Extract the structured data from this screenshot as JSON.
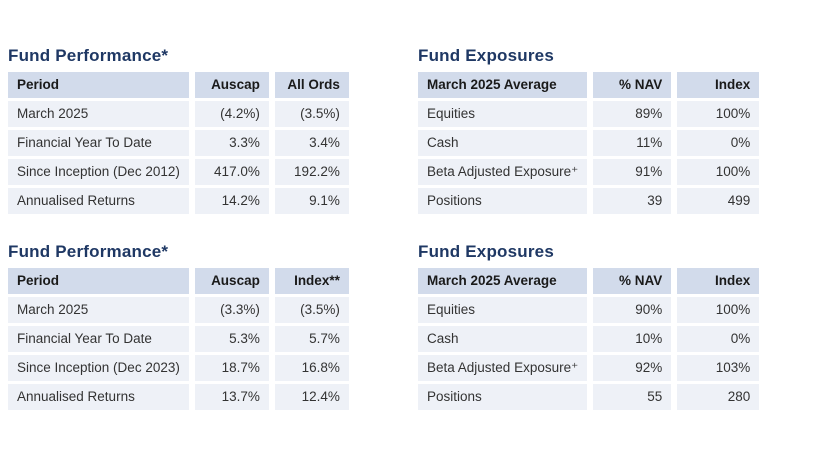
{
  "colors": {
    "title": "#1f3864",
    "header_bg": "#d2dbeb",
    "row_bg": "#eef1f7",
    "header_text": "#1a1a1a",
    "cell_text": "#333333",
    "page_bg": "#ffffff"
  },
  "sections": [
    {
      "title": "Fund Performance*",
      "columns": [
        "Period",
        "Auscap",
        "All Ords"
      ],
      "rows": [
        [
          "March 2025",
          "(4.2%)",
          "(3.5%)"
        ],
        [
          "Financial Year To Date",
          "3.3%",
          "3.4%"
        ],
        [
          "Since Inception (Dec 2012)",
          "417.0%",
          "192.2%"
        ],
        [
          "Annualised Returns",
          "14.2%",
          "9.1%"
        ]
      ]
    },
    {
      "title": "Fund Exposures",
      "columns": [
        "March 2025 Average",
        "% NAV",
        "Index"
      ],
      "rows": [
        [
          "Equities",
          "89%",
          "100%"
        ],
        [
          "Cash",
          "11%",
          "0%"
        ],
        [
          "Beta Adjusted Exposure⁺",
          "91%",
          "100%"
        ],
        [
          "Positions",
          "39",
          "499"
        ]
      ]
    },
    {
      "title": "Fund Performance*",
      "columns": [
        "Period",
        "Auscap",
        "Index**"
      ],
      "rows": [
        [
          "March 2025",
          "(3.3%)",
          "(3.5%)"
        ],
        [
          "Financial Year To Date",
          "5.3%",
          "5.7%"
        ],
        [
          "Since Inception (Dec 2023)",
          "18.7%",
          "16.8%"
        ],
        [
          "Annualised Returns",
          "13.7%",
          "12.4%"
        ]
      ]
    },
    {
      "title": "Fund Exposures",
      "columns": [
        "March 2025 Average",
        "% NAV",
        "Index"
      ],
      "rows": [
        [
          "Equities",
          "90%",
          "100%"
        ],
        [
          "Cash",
          "10%",
          "0%"
        ],
        [
          "Beta Adjusted Exposure⁺",
          "92%",
          "103%"
        ],
        [
          "Positions",
          "55",
          "280"
        ]
      ]
    }
  ]
}
